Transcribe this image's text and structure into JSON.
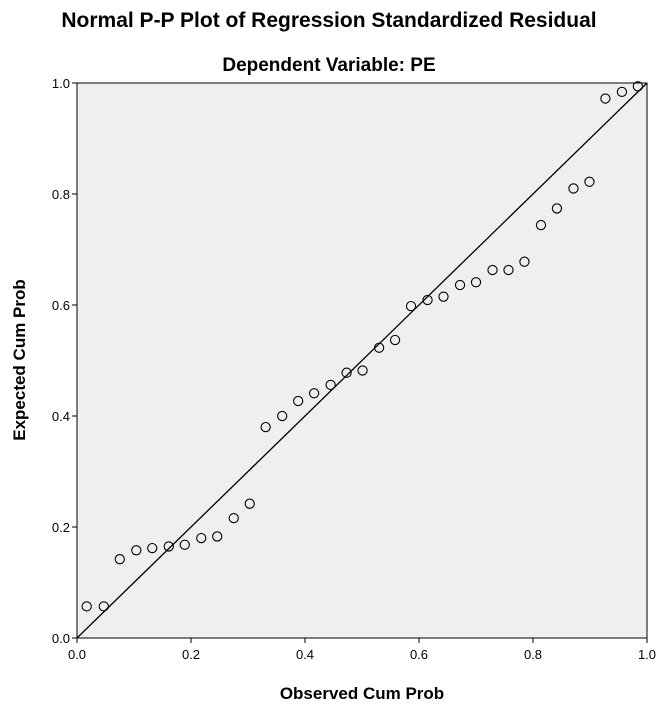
{
  "chart_data": {
    "type": "scatter",
    "title": "Normal P-P Plot of Regression Standardized Residual",
    "subtitle": "Dependent Variable: PE",
    "xlabel": "Observed Cum Prob",
    "ylabel": "Expected Cum Prob",
    "xlim": [
      0.0,
      1.0
    ],
    "ylim": [
      0.0,
      1.0
    ],
    "xticks": [
      "0.0",
      "0.2",
      "0.4",
      "0.6",
      "0.8",
      "1.0"
    ],
    "yticks": [
      "0.0",
      "0.2",
      "0.4",
      "0.6",
      "0.8",
      "1.0"
    ],
    "grid": false,
    "reference_line": {
      "from": [
        0.0,
        0.0
      ],
      "to": [
        1.0,
        1.0
      ]
    },
    "series": [
      {
        "points": [
          [
            0.017,
            0.057
          ],
          [
            0.047,
            0.057
          ],
          [
            0.075,
            0.142
          ],
          [
            0.104,
            0.158
          ],
          [
            0.132,
            0.162
          ],
          [
            0.161,
            0.165
          ],
          [
            0.189,
            0.168
          ],
          [
            0.218,
            0.18
          ],
          [
            0.246,
            0.183
          ],
          [
            0.275,
            0.216
          ],
          [
            0.303,
            0.242
          ],
          [
            0.331,
            0.38
          ],
          [
            0.36,
            0.4
          ],
          [
            0.388,
            0.427
          ],
          [
            0.416,
            0.441
          ],
          [
            0.445,
            0.456
          ],
          [
            0.473,
            0.478
          ],
          [
            0.501,
            0.482
          ],
          [
            0.53,
            0.523
          ],
          [
            0.558,
            0.537
          ],
          [
            0.586,
            0.598
          ],
          [
            0.615,
            0.609
          ],
          [
            0.643,
            0.615
          ],
          [
            0.672,
            0.636
          ],
          [
            0.7,
            0.641
          ],
          [
            0.729,
            0.663
          ],
          [
            0.757,
            0.663
          ],
          [
            0.785,
            0.678
          ],
          [
            0.814,
            0.744
          ],
          [
            0.842,
            0.774
          ],
          [
            0.871,
            0.81
          ],
          [
            0.899,
            0.822
          ],
          [
            0.927,
            0.972
          ],
          [
            0.956,
            0.984
          ],
          [
            0.984,
            0.994
          ]
        ]
      }
    ],
    "colors": {
      "plot_background": "#efefef",
      "point_stroke": "#000000",
      "line": "#000000"
    }
  }
}
